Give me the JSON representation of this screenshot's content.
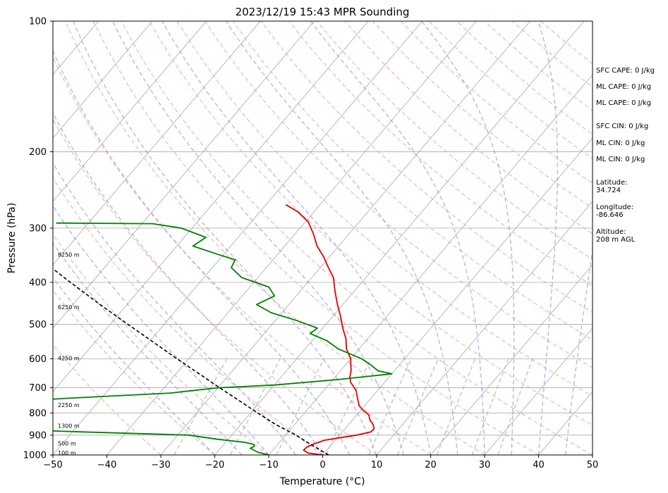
{
  "chart_data": {
    "type": "line",
    "title": "2023/12/19 15:43 MPR Sounding",
    "xlabel": "Temperature (°C)",
    "ylabel": "Pressure (hPa)",
    "xlim": [
      -50,
      50
    ],
    "ylim": [
      1000,
      100
    ],
    "y_scale": "log",
    "skew_t": true,
    "grid": true,
    "x_ticks": [
      "−50",
      "−40",
      "−30",
      "−20",
      "−10",
      "0",
      "10",
      "20",
      "30",
      "40",
      "50"
    ],
    "y_ticks": [
      "100",
      "200",
      "300",
      "400",
      "500",
      "600",
      "700",
      "800",
      "900",
      "1000"
    ],
    "series": [
      {
        "name": "",
        "color": "#e00000",
        "points": [
          [
            1000,
            0
          ],
          [
            990,
            -3
          ],
          [
            975,
            -4.3
          ],
          [
            960,
            -4.2
          ],
          [
            945,
            -3.5
          ],
          [
            925,
            -2
          ],
          [
            910,
            1
          ],
          [
            900,
            3.2
          ],
          [
            885,
            5.3
          ],
          [
            870,
            5.4
          ],
          [
            850,
            4.5
          ],
          [
            830,
            3.2
          ],
          [
            810,
            2.3
          ],
          [
            800,
            1.5
          ],
          [
            790,
            0.5
          ],
          [
            770,
            -1
          ],
          [
            750,
            -2
          ],
          [
            710,
            -4
          ],
          [
            680,
            -6.3
          ],
          [
            660,
            -7.3
          ],
          [
            640,
            -8
          ],
          [
            620,
            -9
          ],
          [
            600,
            -10
          ],
          [
            570,
            -12.3
          ],
          [
            540,
            -14
          ],
          [
            510,
            -16.3
          ],
          [
            480,
            -18.5
          ],
          [
            450,
            -21
          ],
          [
            420,
            -23.5
          ],
          [
            390,
            -26
          ],
          [
            370,
            -28.5
          ],
          [
            350,
            -31
          ],
          [
            330,
            -34
          ],
          [
            310,
            -36.5
          ],
          [
            290,
            -39.5
          ],
          [
            275,
            -43
          ],
          [
            265,
            -46.3
          ]
        ]
      },
      {
        "name": "",
        "color": "#008000",
        "points": [
          [
            1000,
            -10
          ],
          [
            985,
            -12.5
          ],
          [
            965,
            -14.5
          ],
          [
            955,
            -14
          ],
          [
            945,
            -14.5
          ],
          [
            935,
            -16.5
          ],
          [
            920,
            -22
          ],
          [
            900,
            -28
          ],
          [
            885,
            -48
          ],
          [
            875,
            -60
          ],
          [
            850,
            -75
          ],
          [
            840,
            -80
          ],
          [
            800,
            -75
          ],
          [
            780,
            -80
          ],
          [
            760,
            -71
          ],
          [
            740,
            -56
          ],
          [
            720,
            -38
          ],
          [
            700,
            -30
          ],
          [
            690,
            -20
          ],
          [
            670,
            -9
          ],
          [
            650,
            0
          ],
          [
            640,
            -3
          ],
          [
            620,
            -5.3
          ],
          [
            600,
            -8
          ],
          [
            570,
            -13.8
          ],
          [
            545,
            -17.3
          ],
          [
            525,
            -21.5
          ],
          [
            510,
            -21
          ],
          [
            490,
            -26
          ],
          [
            470,
            -32
          ],
          [
            450,
            -36
          ],
          [
            430,
            -34
          ],
          [
            410,
            -36.5
          ],
          [
            390,
            -43
          ],
          [
            370,
            -46.5
          ],
          [
            355,
            -47
          ],
          [
            345,
            -51
          ],
          [
            330,
            -57
          ],
          [
            315,
            -56
          ],
          [
            300,
            -62
          ],
          [
            293,
            -68
          ],
          [
            292,
            -86
          ]
        ]
      },
      {
        "name": "",
        "color": "#000000",
        "points": [
          [
            1000,
            1.1
          ],
          [
            950,
            -3.5
          ],
          [
            900,
            -8.1
          ],
          [
            850,
            -13.6
          ],
          [
            800,
            -18.7
          ],
          [
            750,
            -24
          ],
          [
            700,
            -29.7
          ],
          [
            650,
            -35.7
          ],
          [
            600,
            -42.2
          ],
          [
            550,
            -49.1
          ],
          [
            500,
            -56.7
          ],
          [
            450,
            -65
          ],
          [
            400,
            -74
          ],
          [
            350,
            -84
          ],
          [
            310,
            -92.5
          ]
        ]
      }
    ],
    "height_labels": [
      {
        "text": "100 m",
        "p": 988
      },
      {
        "text": "500 m",
        "p": 941
      },
      {
        "text": "1300 m",
        "p": 856
      },
      {
        "text": "2250 m",
        "p": 767
      },
      {
        "text": "4250 m",
        "p": 598
      },
      {
        "text": "6250 m",
        "p": 456
      },
      {
        "text": "8250 m",
        "p": 345
      }
    ],
    "side_text": [
      [
        "SFC CAPE: 0 J/kg"
      ],
      [
        "ML CAPE: 0 J/kg"
      ],
      [
        "ML CAPE: 0 J/kg"
      ],
      [
        "SFC CIN: 0 J/kg"
      ],
      [
        "ML CIN: 0 J/kg"
      ],
      [
        "ML CIN: 0 J/kg"
      ],
      [
        "Latitude:",
        "34.724"
      ],
      [
        "Longitude:",
        "-86.646"
      ],
      [
        "Altitude:",
        "208 m AGL"
      ]
    ],
    "background_colors": {
      "isotherms": "#a8a8a8",
      "isobars": "#a8a8a8",
      "dry_adiabats": "#f4a0a0",
      "moist_adiabats": "#a090f0",
      "mixing_ratio": "#8cc88c"
    }
  }
}
